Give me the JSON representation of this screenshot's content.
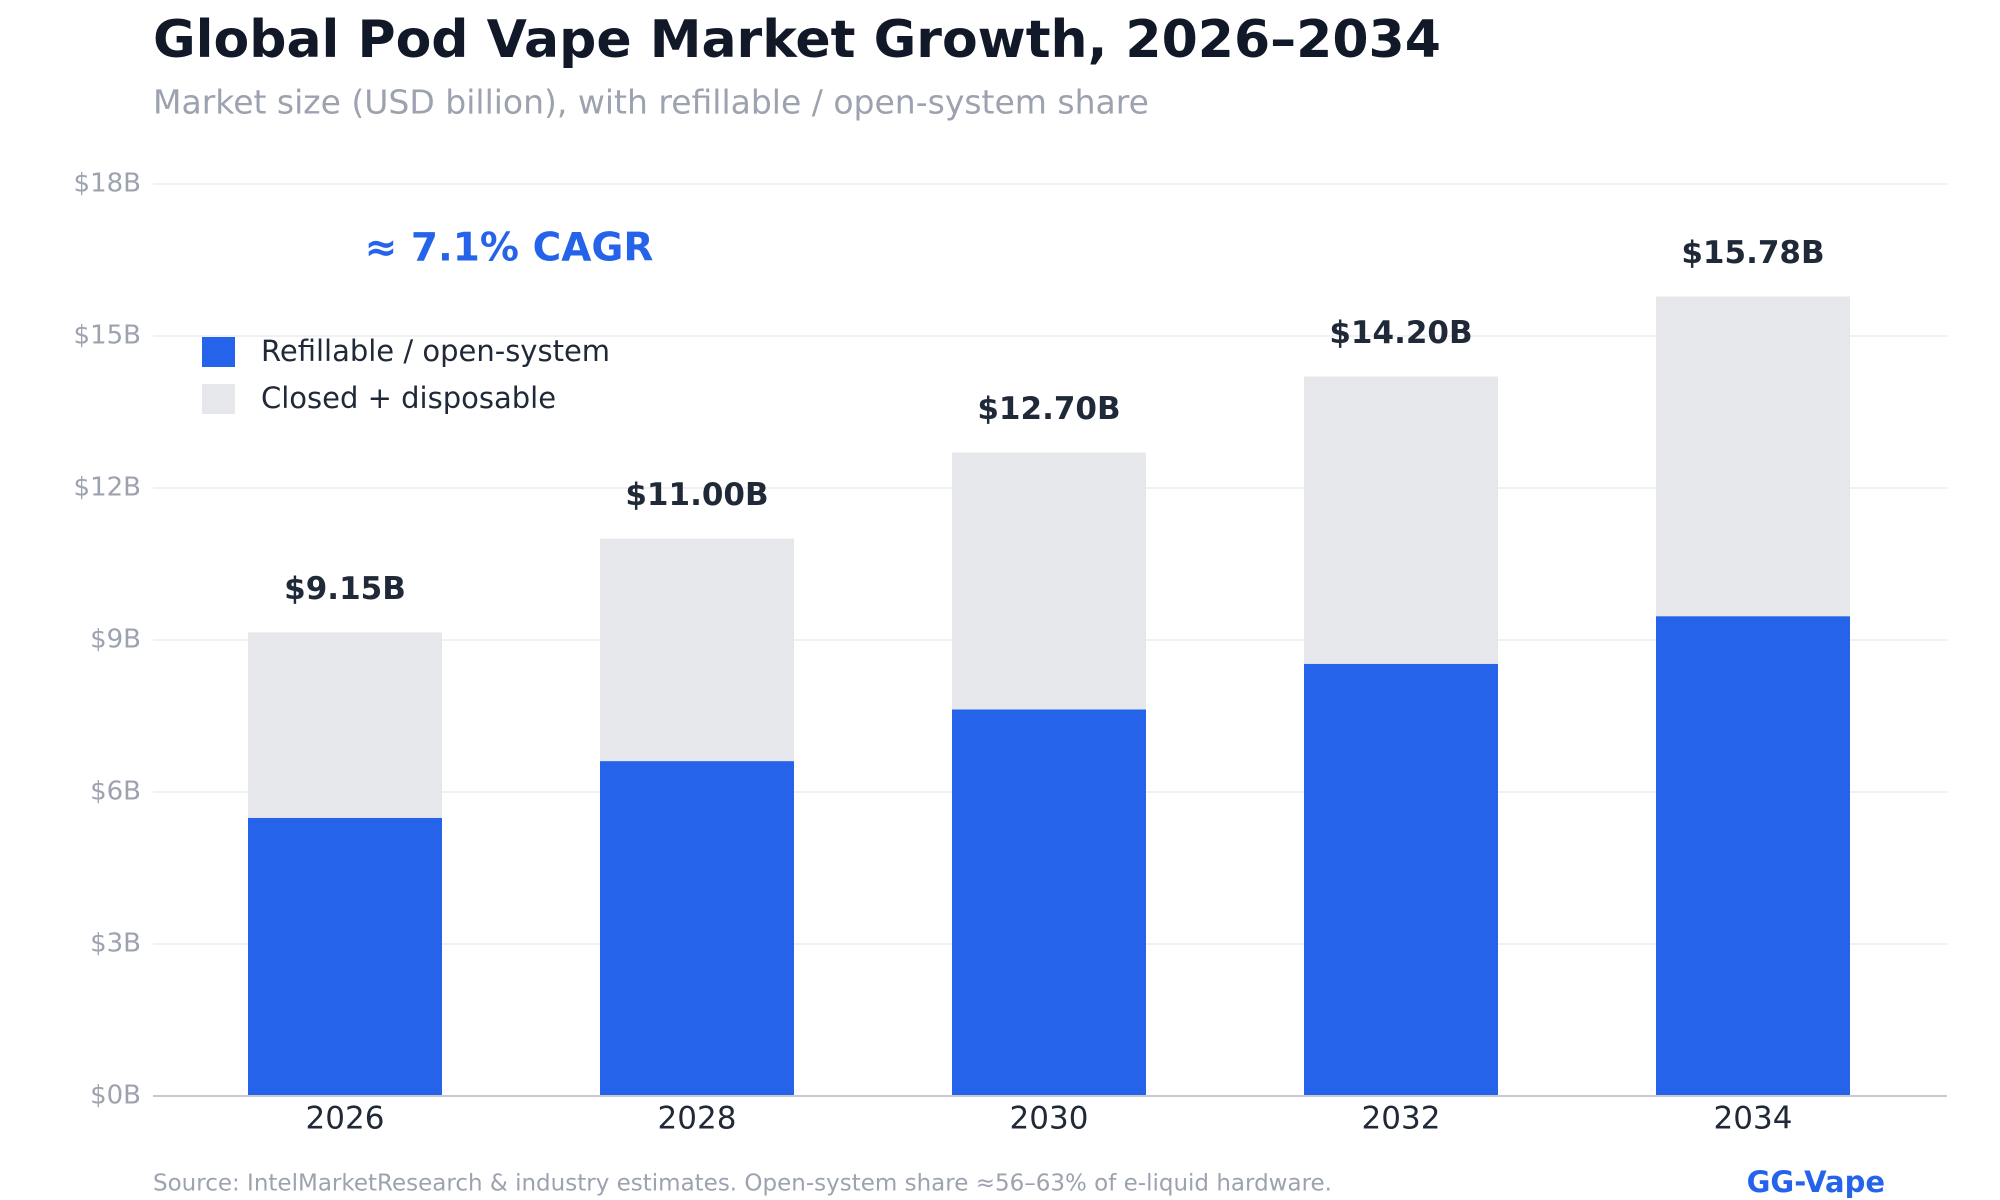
{
  "chart_data": {
    "type": "stacked-bar",
    "title": "Global Pod Vape Market Growth, 2026–2034",
    "subtitle": "Market size (USD billion), with refillable / open-system share",
    "annotation": "≈ 7.1% CAGR",
    "categories": [
      "2026",
      "2028",
      "2030",
      "2032",
      "2034"
    ],
    "series": [
      {
        "name": "Refillable / open-system",
        "color": "#2563eb",
        "values": [
          5.49,
          6.61,
          7.63,
          8.53,
          9.47
        ]
      },
      {
        "name": "Closed + disposable",
        "color": "#e5e7eb",
        "values": [
          3.66,
          4.39,
          5.07,
          5.67,
          6.31
        ]
      }
    ],
    "totals": {
      "values": [
        9.15,
        11.0,
        12.7,
        14.2,
        15.78
      ],
      "value_labels": [
        "$9.15B",
        "$11.00B",
        "$12.70B",
        "$14.20B",
        "$15.78B"
      ]
    },
    "ylim": [
      0,
      18
    ],
    "yticks": [
      {
        "value": 0,
        "label": "$0B"
      },
      {
        "value": 3,
        "label": "$3B"
      },
      {
        "value": 6,
        "label": "$6B"
      },
      {
        "value": 9,
        "label": "$9B"
      },
      {
        "value": 12,
        "label": "$12B"
      },
      {
        "value": 15,
        "label": "$15B"
      },
      {
        "value": 18,
        "label": "$18B"
      }
    ],
    "grid": true,
    "legend": "upper-left",
    "source": "Source: IntelMarketResearch & industry estimates. Open-system share ≈56–63% of e-liquid hardware.",
    "brand": "GG-Vape"
  }
}
